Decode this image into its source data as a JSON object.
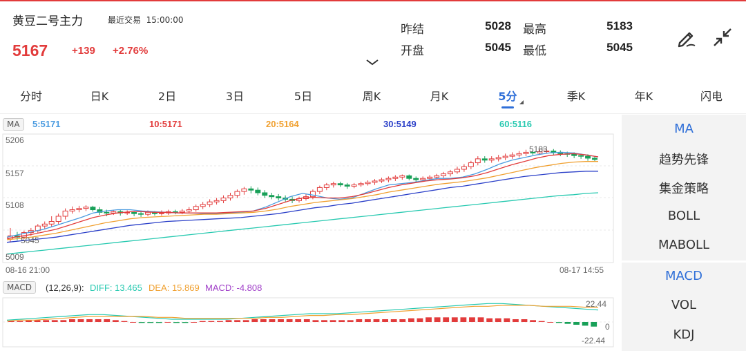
{
  "header": {
    "title": "黄豆二号主力",
    "trade_label": "最近交易",
    "trade_time": "15:00:00",
    "price": "5167",
    "change": "+139",
    "change_pct": "+2.76%"
  },
  "quote": {
    "prev_settle_label": "昨结",
    "prev_settle": "5028",
    "high_label": "最高",
    "high": "5183",
    "open_label": "开盘",
    "open": "5045",
    "low_label": "最低",
    "low": "5045"
  },
  "icons": {
    "draw": "pen-icon",
    "collapse": "collapse-arrows-icon",
    "expand": "chevron-down-icon"
  },
  "tabs": [
    {
      "label": "分时"
    },
    {
      "label": "日K"
    },
    {
      "label": "2日"
    },
    {
      "label": "3日"
    },
    {
      "label": "5日"
    },
    {
      "label": "周K"
    },
    {
      "label": "月K"
    },
    {
      "label": "5分",
      "active": true
    },
    {
      "label": "季K"
    },
    {
      "label": "年K"
    },
    {
      "label": "闪电"
    }
  ],
  "ma": {
    "badge": "MA",
    "ma5": "5:5171",
    "ma10": "10:5171",
    "ma20": "20:5164",
    "ma30": "30:5149",
    "ma60": "60:5116",
    "colors": {
      "ma5": "#4a9be0",
      "ma10": "#e23b3b",
      "ma20": "#f0a030",
      "ma30": "#2a3fc8",
      "ma60": "#27c9b0"
    }
  },
  "price_axis": {
    "top": "5206",
    "mid1": "5157",
    "mid2": "5108",
    "bottom": "5009",
    "high_mark": "5183",
    "low_mark": "5045"
  },
  "time_axis": {
    "start": "08-16 21:00",
    "end": "08-17 14:55"
  },
  "macd": {
    "badge": "MACD",
    "params": "(12,26,9):",
    "diff": "DIFF: 13.465",
    "dea": "DEA: 15.869",
    "macd": "MACD: -4.808",
    "axis_top": "22.44",
    "axis_zero": "0",
    "axis_bottom": "-22.44"
  },
  "side_menu": {
    "items": [
      "MA",
      "趋势先锋",
      "集金策略",
      "BOLL",
      "MABOLL"
    ],
    "items2": [
      "MACD",
      "VOL",
      "KDJ"
    ]
  },
  "chart_data": {
    "type": "candlestick",
    "ylim": [
      5009,
      5206
    ],
    "candles": [
      [
        5045,
        5050,
        5040,
        5062
      ],
      [
        5050,
        5048,
        5043,
        5056
      ],
      [
        5048,
        5055,
        5045,
        5058
      ],
      [
        5055,
        5058,
        5050,
        5062
      ],
      [
        5058,
        5065,
        5054,
        5068
      ],
      [
        5065,
        5068,
        5060,
        5072
      ],
      [
        5068,
        5072,
        5063,
        5080
      ],
      [
        5072,
        5080,
        5068,
        5084
      ],
      [
        5080,
        5088,
        5075,
        5092
      ],
      [
        5088,
        5090,
        5084,
        5095
      ],
      [
        5090,
        5092,
        5086,
        5096
      ],
      [
        5092,
        5094,
        5088,
        5097
      ],
      [
        5094,
        5090,
        5087,
        5096
      ],
      [
        5090,
        5086,
        5082,
        5094
      ],
      [
        5086,
        5085,
        5080,
        5090
      ],
      [
        5085,
        5087,
        5082,
        5090
      ],
      [
        5087,
        5085,
        5081,
        5090
      ],
      [
        5085,
        5086,
        5082,
        5089
      ],
      [
        5086,
        5084,
        5080,
        5088
      ],
      [
        5084,
        5083,
        5079,
        5087
      ],
      [
        5083,
        5086,
        5080,
        5089
      ],
      [
        5086,
        5084,
        5081,
        5088
      ],
      [
        5084,
        5085,
        5081,
        5089
      ],
      [
        5085,
        5087,
        5082,
        5090
      ],
      [
        5087,
        5086,
        5083,
        5090
      ],
      [
        5086,
        5088,
        5083,
        5091
      ],
      [
        5088,
        5090,
        5085,
        5094
      ],
      [
        5090,
        5095,
        5087,
        5098
      ],
      [
        5095,
        5098,
        5091,
        5102
      ],
      [
        5098,
        5102,
        5094,
        5106
      ],
      [
        5102,
        5104,
        5098,
        5108
      ],
      [
        5104,
        5108,
        5100,
        5112
      ],
      [
        5108,
        5112,
        5104,
        5116
      ],
      [
        5112,
        5118,
        5108,
        5121
      ],
      [
        5118,
        5122,
        5113,
        5125
      ],
      [
        5122,
        5120,
        5115,
        5126
      ],
      [
        5120,
        5116,
        5112,
        5124
      ],
      [
        5116,
        5112,
        5108,
        5120
      ],
      [
        5112,
        5110,
        5106,
        5116
      ],
      [
        5110,
        5108,
        5104,
        5114
      ],
      [
        5108,
        5106,
        5102,
        5112
      ],
      [
        5106,
        5104,
        5100,
        5110
      ],
      [
        5104,
        5107,
        5101,
        5110
      ],
      [
        5107,
        5110,
        5104,
        5114
      ],
      [
        5110,
        5118,
        5106,
        5121
      ],
      [
        5118,
        5124,
        5114,
        5127
      ],
      [
        5124,
        5128,
        5120,
        5131
      ],
      [
        5128,
        5130,
        5124,
        5133
      ],
      [
        5130,
        5128,
        5125,
        5133
      ],
      [
        5128,
        5126,
        5122,
        5131
      ],
      [
        5126,
        5128,
        5123,
        5131
      ],
      [
        5128,
        5130,
        5125,
        5133
      ],
      [
        5130,
        5132,
        5127,
        5135
      ],
      [
        5132,
        5134,
        5128,
        5137
      ],
      [
        5134,
        5136,
        5131,
        5139
      ],
      [
        5136,
        5138,
        5132,
        5141
      ],
      [
        5138,
        5140,
        5134,
        5143
      ],
      [
        5140,
        5142,
        5136,
        5144
      ],
      [
        5142,
        5138,
        5135,
        5144
      ],
      [
        5138,
        5136,
        5133,
        5141
      ],
      [
        5136,
        5138,
        5133,
        5141
      ],
      [
        5138,
        5140,
        5135,
        5143
      ],
      [
        5140,
        5142,
        5137,
        5145
      ],
      [
        5142,
        5145,
        5138,
        5148
      ],
      [
        5145,
        5148,
        5141,
        5151
      ],
      [
        5148,
        5152,
        5145,
        5156
      ],
      [
        5152,
        5156,
        5148,
        5160
      ],
      [
        5156,
        5162,
        5152,
        5165
      ],
      [
        5162,
        5168,
        5158,
        5172
      ],
      [
        5168,
        5166,
        5162,
        5172
      ],
      [
        5166,
        5168,
        5162,
        5172
      ],
      [
        5168,
        5170,
        5164,
        5174
      ],
      [
        5170,
        5172,
        5166,
        5176
      ],
      [
        5172,
        5174,
        5168,
        5178
      ],
      [
        5174,
        5176,
        5170,
        5180
      ],
      [
        5176,
        5178,
        5172,
        5182
      ],
      [
        5178,
        5177,
        5174,
        5181
      ],
      [
        5177,
        5179,
        5174,
        5182
      ],
      [
        5179,
        5180,
        5176,
        5183
      ],
      [
        5180,
        5178,
        5174,
        5183
      ],
      [
        5178,
        5176,
        5172,
        5181
      ],
      [
        5176,
        5175,
        5171,
        5179
      ],
      [
        5175,
        5173,
        5169,
        5178
      ],
      [
        5173,
        5172,
        5168,
        5176
      ],
      [
        5172,
        5169,
        5165,
        5175
      ],
      [
        5169,
        5167,
        5164,
        5172
      ]
    ],
    "ma_series": {
      "ma5": [
        5048,
        5052,
        5056,
        5060,
        5066,
        5072,
        5078,
        5085,
        5088,
        5090,
        5090,
        5088,
        5087,
        5086,
        5085,
        5085,
        5084,
        5084,
        5085,
        5086,
        5088,
        5094,
        5102,
        5110,
        5115,
        5112,
        5108,
        5106,
        5108,
        5115,
        5122,
        5128,
        5130,
        5132,
        5135,
        5138,
        5138,
        5140,
        5145,
        5152,
        5160,
        5166,
        5170,
        5174,
        5177,
        5178,
        5177,
        5174,
        5171
      ],
      "ma10": [
        5046,
        5049,
        5052,
        5056,
        5060,
        5066,
        5072,
        5078,
        5082,
        5085,
        5087,
        5087,
        5086,
        5086,
        5085,
        5085,
        5085,
        5085,
        5086,
        5087,
        5088,
        5092,
        5098,
        5104,
        5108,
        5109,
        5108,
        5108,
        5110,
        5114,
        5119,
        5124,
        5128,
        5131,
        5134,
        5136,
        5137,
        5139,
        5142,
        5147,
        5153,
        5159,
        5164,
        5169,
        5173,
        5175,
        5176,
        5174,
        5171
      ],
      "ma20": [
        5044,
        5046,
        5048,
        5051,
        5054,
        5058,
        5062,
        5066,
        5070,
        5073,
        5076,
        5078,
        5079,
        5080,
        5081,
        5082,
        5083,
        5083,
        5084,
        5085,
        5086,
        5088,
        5091,
        5095,
        5098,
        5101,
        5103,
        5105,
        5107,
        5110,
        5113,
        5117,
        5120,
        5123,
        5126,
        5129,
        5131,
        5133,
        5136,
        5139,
        5143,
        5147,
        5151,
        5155,
        5158,
        5161,
        5163,
        5164,
        5164
      ],
      "ma30": [
        5040,
        5042,
        5044,
        5046,
        5048,
        5051,
        5054,
        5057,
        5060,
        5063,
        5066,
        5068,
        5070,
        5072,
        5073,
        5074,
        5075,
        5076,
        5077,
        5078,
        5080,
        5082,
        5084,
        5087,
        5090,
        5093,
        5095,
        5098,
        5100,
        5103,
        5106,
        5109,
        5112,
        5115,
        5118,
        5121,
        5124,
        5126,
        5129,
        5132,
        5135,
        5138,
        5141,
        5143,
        5145,
        5147,
        5148,
        5149,
        5149
      ],
      "ma60": [
        5022,
        5024,
        5026,
        5028,
        5030,
        5032,
        5034,
        5036,
        5038,
        5040,
        5042,
        5044,
        5046,
        5048,
        5050,
        5052,
        5054,
        5056,
        5058,
        5060,
        5062,
        5064,
        5066,
        5068,
        5070,
        5072,
        5074,
        5076,
        5078,
        5080,
        5082,
        5084,
        5086,
        5088,
        5090,
        5092,
        5094,
        5096,
        5098,
        5100,
        5102,
        5104,
        5106,
        5108,
        5110,
        5112,
        5113,
        5115,
        5116
      ]
    },
    "macd_ylim": [
      -22.44,
      22.44
    ],
    "diff_series": [
      2,
      3,
      4,
      5,
      6,
      7,
      8,
      8,
      7,
      6,
      5,
      4,
      3,
      3,
      3,
      3,
      3,
      4,
      5,
      6,
      7,
      8,
      9,
      9,
      9,
      10,
      11,
      12,
      13,
      14,
      15,
      16,
      17,
      18,
      19,
      20,
      20,
      19,
      18,
      17,
      16,
      15,
      14,
      13
    ],
    "dea_series": [
      1,
      2,
      2,
      3,
      4,
      5,
      6,
      6,
      6,
      6,
      6,
      5,
      5,
      4,
      4,
      4,
      4,
      4,
      4,
      5,
      5,
      6,
      7,
      7,
      8,
      8,
      9,
      10,
      11,
      12,
      13,
      14,
      15,
      16,
      17,
      17,
      18,
      18,
      18,
      17,
      17,
      17,
      16,
      16
    ],
    "macd_hist": [
      1,
      1,
      2,
      2,
      2,
      2,
      2,
      3,
      3,
      3,
      3,
      3,
      2,
      1,
      0,
      -1,
      -1,
      -1,
      0,
      -1,
      -1,
      0,
      1,
      1,
      1,
      2,
      2,
      2,
      3,
      3,
      3,
      3,
      3,
      3,
      3,
      2,
      2,
      2,
      2,
      2,
      3,
      3,
      3,
      3,
      3,
      3,
      4,
      4,
      5,
      5,
      5,
      5,
      5,
      5,
      5,
      4,
      4,
      4,
      3,
      3,
      2,
      1,
      0,
      -1,
      -2,
      -3,
      -4,
      -5
    ]
  }
}
